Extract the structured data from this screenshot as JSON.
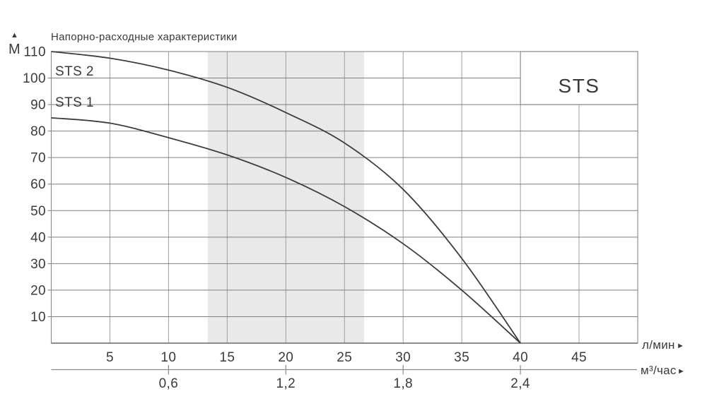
{
  "title": "Напорно-расходные характеристики",
  "icons": {
    "up_arrow": "▲",
    "right_arrow": "►"
  },
  "colors": {
    "background": "#ffffff",
    "band": "#e9e9e9",
    "grid_horizontal": "#7f7f7f",
    "grid_vertical": "#9e9e9e",
    "plot_border": "#8a8a8a",
    "bottom_axis": "#6b6b6b",
    "curve": "#3d3d3d",
    "text": "#3a3a3a",
    "legend_fill": "#ffffff",
    "legend_border": "#8a8a8a"
  },
  "chart_data": {
    "type": "line",
    "title": "Напорно-расходные характеристики",
    "legend_box": "STS",
    "grid": true,
    "y_axis": {
      "label": "М",
      "range": [
        0,
        110
      ],
      "ticks": [
        110,
        100,
        90,
        80,
        70,
        60,
        50,
        40,
        30,
        20,
        10
      ]
    },
    "x_axis": {
      "label": "л/мин",
      "range": [
        0,
        50
      ],
      "ticks": [
        5,
        10,
        15,
        20,
        25,
        30,
        35,
        40,
        45
      ]
    },
    "x2_axis": {
      "label": "м³/час",
      "tick_labels": [
        "0,6",
        "1,2",
        "1,8",
        "2,4"
      ],
      "tick_positions_lmin": [
        10,
        20,
        30,
        40
      ]
    },
    "recommended_band_lmin": [
      13.33,
      26.67
    ],
    "series": [
      {
        "name": "STS 2",
        "points_lmin_m": [
          [
            0,
            110
          ],
          [
            5,
            107.5
          ],
          [
            10,
            103
          ],
          [
            15,
            96.5
          ],
          [
            20,
            87
          ],
          [
            25,
            75.5
          ],
          [
            30,
            58
          ],
          [
            35,
            32
          ],
          [
            40,
            0
          ]
        ]
      },
      {
        "name": "STS 1",
        "points_lmin_m": [
          [
            0,
            85
          ],
          [
            5,
            83
          ],
          [
            10,
            77.5
          ],
          [
            15,
            71
          ],
          [
            20,
            62.5
          ],
          [
            25,
            51.5
          ],
          [
            30,
            37.5
          ],
          [
            35,
            20
          ],
          [
            40,
            0
          ]
        ]
      }
    ]
  }
}
